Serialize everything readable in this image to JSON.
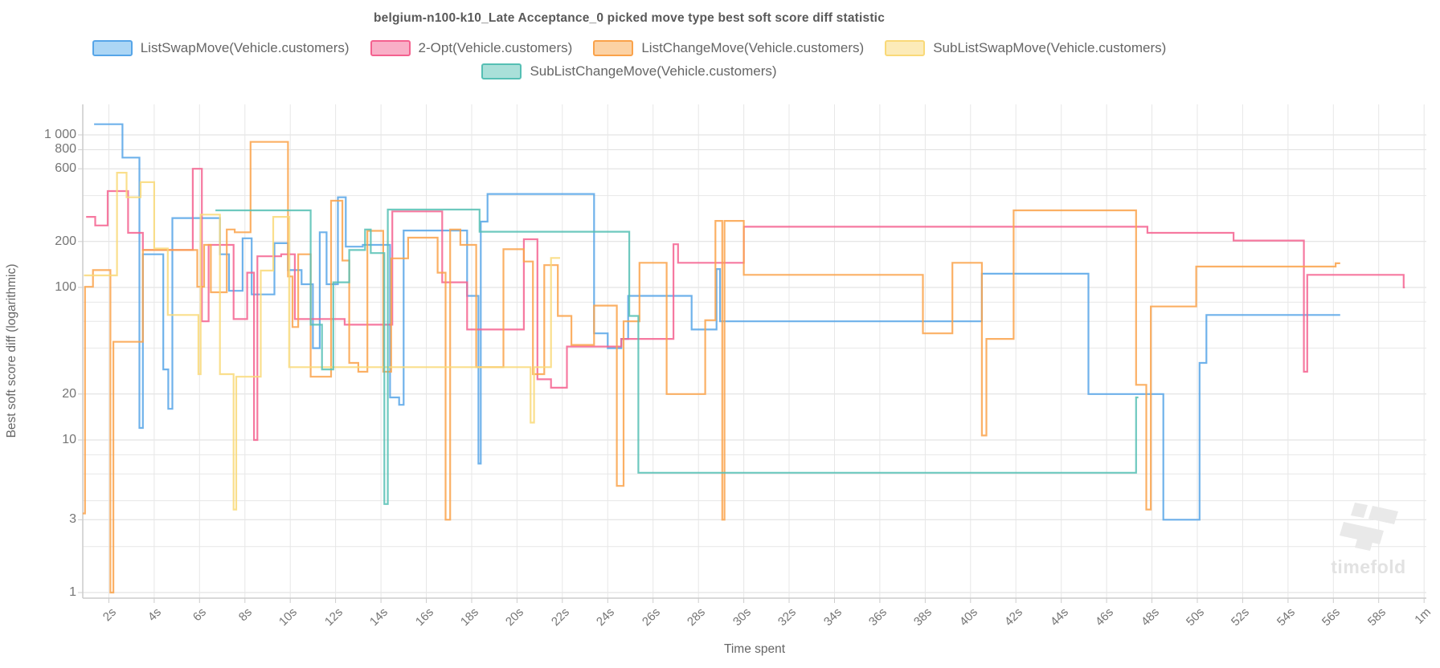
{
  "title": "belgium-n100-k10_Late Acceptance_0 picked move type best soft score diff statistic",
  "legend": {
    "items": [
      {
        "label": "ListSwapMove(Vehicle.customers)",
        "color": "#56A5E8",
        "fill": "#ACD6F5",
        "row": 0
      },
      {
        "label": "2-Opt(Vehicle.customers)",
        "color": "#F4618F",
        "fill": "#F9AFC7",
        "row": 0
      },
      {
        "label": "ListChangeMove(Vehicle.customers)",
        "color": "#FAA24A",
        "fill": "#FCD2A4",
        "row": 0
      },
      {
        "label": "SubListSwapMove(Vehicle.customers)",
        "color": "#F9D978",
        "fill": "#FCEBB9",
        "row": 0
      },
      {
        "label": "SubListChangeMove(Vehicle.customers)",
        "color": "#55BFB4",
        "fill": "#A9E0D9",
        "row": 1
      }
    ]
  },
  "axes": {
    "x_title": "Time spent",
    "y_title": "Best soft score diff (logarithmic)",
    "x_ticks": [
      {
        "t": 2,
        "label": "2s"
      },
      {
        "t": 4,
        "label": "4s"
      },
      {
        "t": 6,
        "label": "6s"
      },
      {
        "t": 8,
        "label": "8s"
      },
      {
        "t": 10,
        "label": "10s"
      },
      {
        "t": 12,
        "label": "12s"
      },
      {
        "t": 14,
        "label": "14s"
      },
      {
        "t": 16,
        "label": "16s"
      },
      {
        "t": 18,
        "label": "18s"
      },
      {
        "t": 20,
        "label": "20s"
      },
      {
        "t": 22,
        "label": "22s"
      },
      {
        "t": 24,
        "label": "24s"
      },
      {
        "t": 26,
        "label": "26s"
      },
      {
        "t": 28,
        "label": "28s"
      },
      {
        "t": 30,
        "label": "30s"
      },
      {
        "t": 32,
        "label": "32s"
      },
      {
        "t": 34,
        "label": "34s"
      },
      {
        "t": 36,
        "label": "36s"
      },
      {
        "t": 38,
        "label": "38s"
      },
      {
        "t": 40,
        "label": "40s"
      },
      {
        "t": 42,
        "label": "42s"
      },
      {
        "t": 44,
        "label": "44s"
      },
      {
        "t": 46,
        "label": "46s"
      },
      {
        "t": 48,
        "label": "48s"
      },
      {
        "t": 50,
        "label": "50s"
      },
      {
        "t": 52,
        "label": "52s"
      },
      {
        "t": 54,
        "label": "54s"
      },
      {
        "t": 56,
        "label": "56s"
      },
      {
        "t": 58,
        "label": "58s"
      },
      {
        "t": 60,
        "label": "1m"
      }
    ],
    "y_ticks": [
      {
        "v": 1,
        "label": "1"
      },
      {
        "v": 2
      },
      {
        "v": 3,
        "label": "3"
      },
      {
        "v": 4
      },
      {
        "v": 6
      },
      {
        "v": 8
      },
      {
        "v": 10,
        "label": "10"
      },
      {
        "v": 20,
        "label": "20"
      },
      {
        "v": 40
      },
      {
        "v": 60
      },
      {
        "v": 80
      },
      {
        "v": 100,
        "label": "100"
      },
      {
        "v": 200,
        "label": "200"
      },
      {
        "v": 400
      },
      {
        "v": 600,
        "label": "600"
      },
      {
        "v": 800,
        "label": "800"
      },
      {
        "v": 1000,
        "label": "1 000"
      }
    ]
  },
  "chart_data": {
    "type": "line",
    "step": "after",
    "x_unit": "seconds",
    "x_range": [
      0.85,
      60.1
    ],
    "y_scale": "log10",
    "y_range": [
      1,
      1600
    ],
    "grid": true,
    "legend_position": "top",
    "series": [
      {
        "name": "ListSwapMove(Vehicle.customers)",
        "color": "#56A5E8",
        "end": 56.3,
        "points": [
          [
            1.35,
            1175
          ],
          [
            2.6,
            710
          ],
          [
            3.35,
            12
          ],
          [
            3.5,
            165
          ],
          [
            4.4,
            29
          ],
          [
            4.62,
            16
          ],
          [
            4.8,
            285
          ],
          [
            6.9,
            165
          ],
          [
            7.3,
            95
          ],
          [
            7.9,
            210
          ],
          [
            8.3,
            90
          ],
          [
            9.3,
            195
          ],
          [
            9.9,
            130
          ],
          [
            10.5,
            105
          ],
          [
            11.0,
            40
          ],
          [
            11.3,
            230
          ],
          [
            11.6,
            105
          ],
          [
            12.1,
            390
          ],
          [
            12.45,
            185
          ],
          [
            13.2,
            190
          ],
          [
            14.4,
            19
          ],
          [
            14.8,
            17
          ],
          [
            15.0,
            236
          ],
          [
            17.8,
            88
          ],
          [
            18.3,
            7
          ],
          [
            18.4,
            270
          ],
          [
            18.7,
            410
          ],
          [
            23.4,
            50
          ],
          [
            24.0,
            40
          ],
          [
            24.6,
            46
          ],
          [
            24.9,
            88
          ],
          [
            27.7,
            53
          ],
          [
            28.8,
            132
          ],
          [
            28.95,
            60
          ],
          [
            40.5,
            123
          ],
          [
            45.2,
            20
          ],
          [
            48.5,
            3
          ],
          [
            50.1,
            32
          ],
          [
            50.4,
            66
          ]
        ]
      },
      {
        "name": "2-Opt(Vehicle.customers)",
        "color": "#F4618F",
        "end": 59.15,
        "points": [
          [
            1.0,
            290
          ],
          [
            1.4,
            255
          ],
          [
            1.95,
            428
          ],
          [
            2.85,
            228
          ],
          [
            3.5,
            176
          ],
          [
            5.7,
            600
          ],
          [
            6.1,
            60
          ],
          [
            6.4,
            190
          ],
          [
            7.5,
            62
          ],
          [
            8.1,
            125
          ],
          [
            8.4,
            10
          ],
          [
            8.55,
            160
          ],
          [
            9.6,
            165
          ],
          [
            10.2,
            62
          ],
          [
            12.4,
            57
          ],
          [
            14.5,
            315
          ],
          [
            16.7,
            108
          ],
          [
            17.8,
            53
          ],
          [
            20.3,
            207
          ],
          [
            20.9,
            25
          ],
          [
            21.5,
            22
          ],
          [
            22.2,
            41
          ],
          [
            24.6,
            46
          ],
          [
            26.9,
            192
          ],
          [
            27.1,
            145
          ],
          [
            30.0,
            250
          ],
          [
            47.8,
            228
          ],
          [
            51.6,
            203
          ],
          [
            54.7,
            28
          ],
          [
            54.85,
            121
          ],
          [
            59.1,
            100
          ]
        ]
      },
      {
        "name": "ListChangeMove(Vehicle.customers)",
        "color": "#FAA24A",
        "end": 56.3,
        "points": [
          [
            0.85,
            3.3
          ],
          [
            0.95,
            101
          ],
          [
            1.3,
            130
          ],
          [
            2.07,
            1
          ],
          [
            2.2,
            44
          ],
          [
            3.5,
            176
          ],
          [
            5.9,
            101
          ],
          [
            6.2,
            190
          ],
          [
            6.5,
            93
          ],
          [
            7.2,
            240
          ],
          [
            7.55,
            230
          ],
          [
            8.25,
            900
          ],
          [
            9.9,
            118
          ],
          [
            10.1,
            55
          ],
          [
            10.35,
            165
          ],
          [
            10.9,
            26
          ],
          [
            11.8,
            370
          ],
          [
            12.3,
            150
          ],
          [
            12.6,
            32
          ],
          [
            13.0,
            28
          ],
          [
            13.4,
            235
          ],
          [
            14.1,
            28
          ],
          [
            14.45,
            155
          ],
          [
            15.2,
            212
          ],
          [
            16.5,
            125
          ],
          [
            16.85,
            3
          ],
          [
            17.05,
            240
          ],
          [
            17.5,
            190
          ],
          [
            18.2,
            30
          ],
          [
            19.4,
            178
          ],
          [
            20.3,
            148
          ],
          [
            20.7,
            27
          ],
          [
            21.2,
            140
          ],
          [
            21.8,
            65
          ],
          [
            22.4,
            42
          ],
          [
            23.4,
            76
          ],
          [
            24.4,
            5
          ],
          [
            24.7,
            60
          ],
          [
            25.4,
            145
          ],
          [
            26.6,
            20
          ],
          [
            28.3,
            61
          ],
          [
            28.75,
            273
          ],
          [
            29.05,
            3
          ],
          [
            29.15,
            273
          ],
          [
            30.0,
            121
          ],
          [
            37.9,
            50
          ],
          [
            39.2,
            145
          ],
          [
            40.5,
            10.7
          ],
          [
            40.7,
            46
          ],
          [
            41.9,
            320
          ],
          [
            47.3,
            23
          ],
          [
            47.75,
            3.5
          ],
          [
            47.95,
            75
          ],
          [
            49.95,
            137
          ],
          [
            56.1,
            144
          ]
        ]
      },
      {
        "name": "SubListSwapMove(Vehicle.customers)",
        "color": "#F9D978",
        "end": 21.9,
        "points": [
          [
            0.9,
            120
          ],
          [
            2.36,
            565
          ],
          [
            2.78,
            390
          ],
          [
            3.4,
            490
          ],
          [
            4.0,
            180
          ],
          [
            4.6,
            66
          ],
          [
            5.95,
            27
          ],
          [
            6.05,
            300
          ],
          [
            6.9,
            27
          ],
          [
            7.5,
            3.5
          ],
          [
            7.62,
            26
          ],
          [
            8.7,
            129
          ],
          [
            9.25,
            290
          ],
          [
            9.95,
            30
          ],
          [
            20.6,
            13
          ],
          [
            20.75,
            30
          ],
          [
            21.5,
            156
          ]
        ]
      },
      {
        "name": "SubListChangeMove(Vehicle.customers)",
        "color": "#55BFB4",
        "end": 47.4,
        "points": [
          [
            6.7,
            320
          ],
          [
            10.9,
            57
          ],
          [
            11.4,
            29
          ],
          [
            11.9,
            108
          ],
          [
            12.6,
            176
          ],
          [
            13.3,
            240
          ],
          [
            13.55,
            168
          ],
          [
            14.15,
            3.8
          ],
          [
            14.3,
            324
          ],
          [
            18.35,
            232
          ],
          [
            24.95,
            65
          ],
          [
            25.35,
            6.1
          ],
          [
            47.3,
            19
          ]
        ]
      }
    ]
  },
  "watermark": {
    "logo": "tf-logo",
    "text": "timefold"
  },
  "colors": {
    "grid_minor": "#e7e7e7",
    "grid_major": "#dedede",
    "axis_line": "#cccccc",
    "tick_text": "#757575",
    "title_text": "#595959"
  }
}
